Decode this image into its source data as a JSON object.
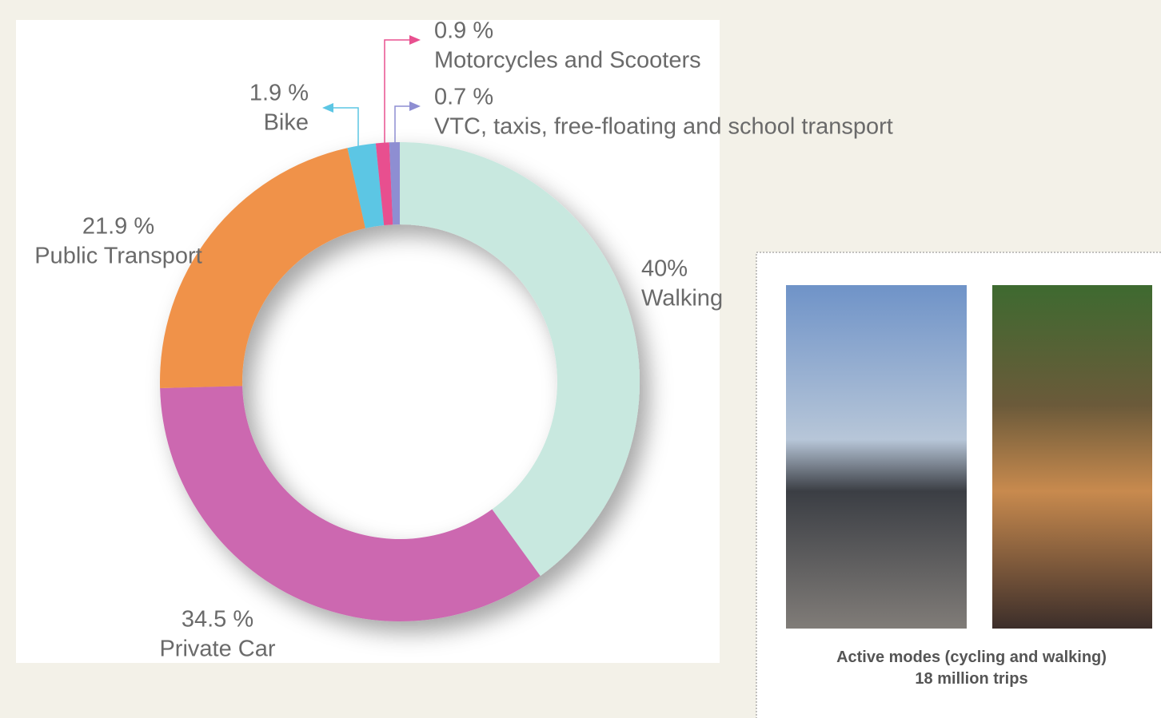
{
  "chart_data": {
    "type": "donut",
    "categories": [
      "Walking",
      "Private Car",
      "Public Transport",
      "Bike",
      "Motorcycles and Scooters",
      "VTC, taxis, free-floating and school transport"
    ],
    "values": [
      40,
      34.5,
      21.9,
      1.9,
      0.9,
      0.7
    ],
    "value_labels": [
      "40%",
      "34.5 %",
      "21.9 %",
      "1.9 %",
      "0.9 %",
      "0.7 %"
    ],
    "colors": [
      "#c8e8df",
      "#cc68b0",
      "#f0924a",
      "#5cc6e4",
      "#e8508f",
      "#8e8ed2"
    ]
  },
  "panel": {
    "caption": "Active modes (cycling and walking)",
    "subcaption": "18 million trips"
  }
}
